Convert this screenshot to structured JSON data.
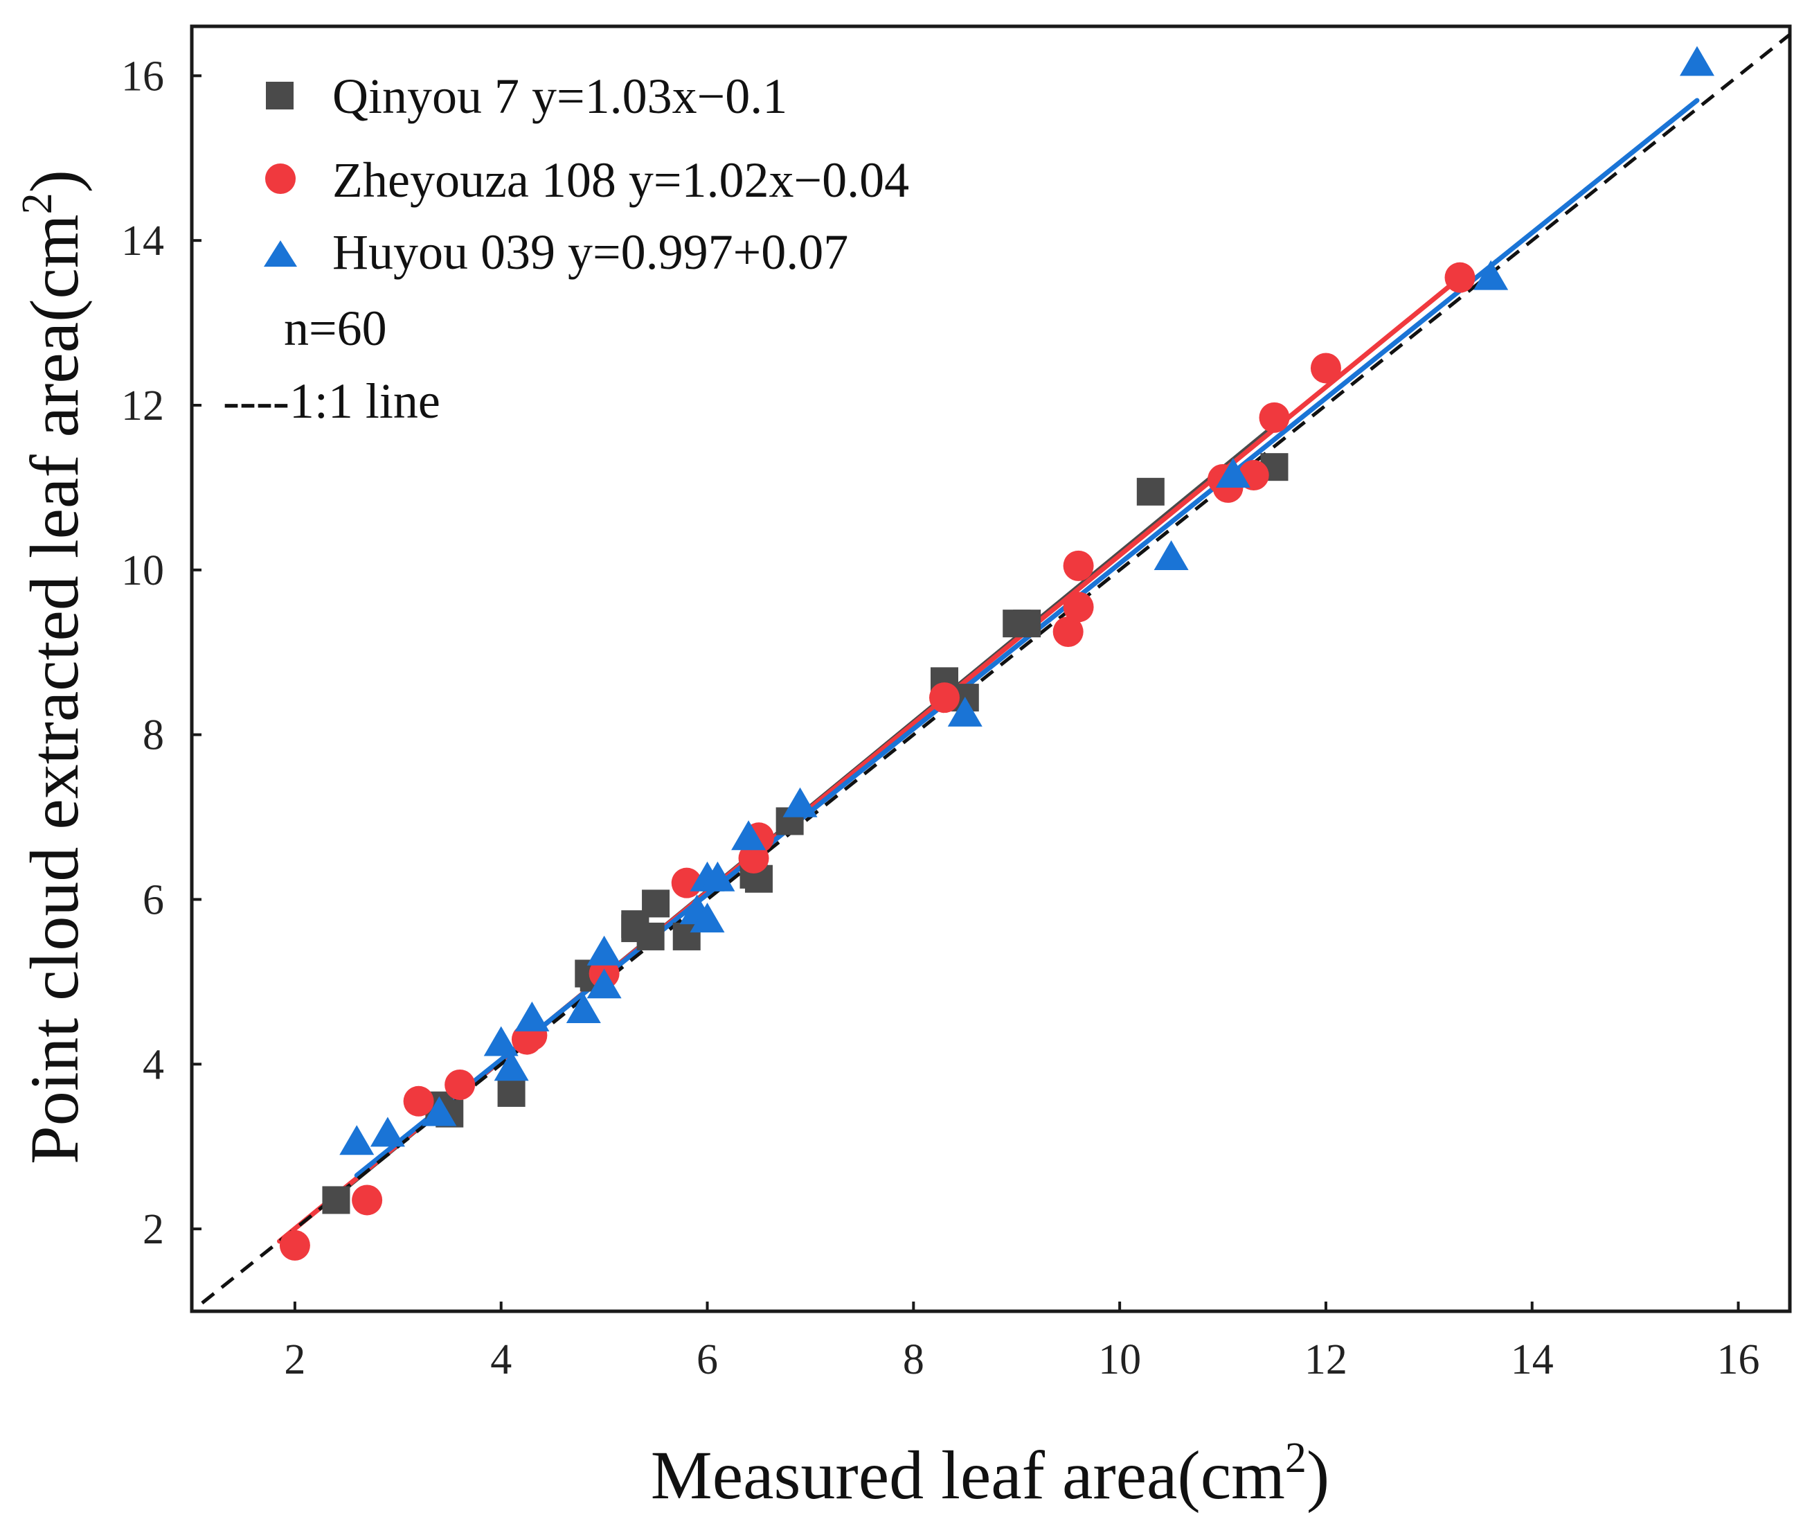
{
  "chart_data": {
    "type": "scatter",
    "xlabel": "Measured leaf area(cm",
    "xlabel_sup": "2",
    "xlabel_close": ")",
    "ylabel": "Point cloud extracted leaf area(cm",
    "ylabel_sup": "2",
    "ylabel_close": ")",
    "xlim": [
      1,
      16.5
    ],
    "ylim": [
      1,
      16.6
    ],
    "xticks": [
      2,
      4,
      6,
      8,
      10,
      12,
      14,
      16
    ],
    "yticks": [
      2,
      4,
      6,
      8,
      10,
      12,
      14,
      16
    ],
    "grid": false,
    "legend_position": "top-left",
    "n_label": "n=60",
    "reference_line": {
      "label": "----1:1 line",
      "slope": 1,
      "intercept": 0,
      "range": [
        1.1,
        16.5
      ],
      "color": "#111111"
    },
    "series": [
      {
        "name": "Qinyou 7",
        "equation": "Qinyou 7 y=1.03x−0.1",
        "marker": "square",
        "color": "#4a4a4a",
        "fit": {
          "x0": 2.4,
          "y0": 2.4,
          "x1": 11.5,
          "y1": 11.75
        },
        "points": [
          [
            2.4,
            2.35
          ],
          [
            3.4,
            3.5
          ],
          [
            4.1,
            3.65
          ],
          [
            4.85,
            5.1
          ],
          [
            5.3,
            5.7
          ],
          [
            5.45,
            5.55
          ],
          [
            5.5,
            5.95
          ],
          [
            5.8,
            5.55
          ],
          [
            6.5,
            6.25
          ],
          [
            6.8,
            6.95
          ],
          [
            8.3,
            8.65
          ],
          [
            8.5,
            8.45
          ],
          [
            9.0,
            9.35
          ],
          [
            9.1,
            9.35
          ],
          [
            10.3,
            10.95
          ],
          [
            11.5,
            11.25
          ],
          [
            5.3,
            5.65
          ],
          [
            6.45,
            6.3
          ],
          [
            3.5,
            3.4
          ],
          [
            4.9,
            5.05
          ]
        ]
      },
      {
        "name": "Zheyouza 108",
        "equation": "Zheyouza 108 y=1.02x−0.04",
        "marker": "circle",
        "color": "#f0393e",
        "fit": {
          "x0": 1.85,
          "y0": 1.85,
          "x1": 13.35,
          "y1": 13.6
        },
        "points": [
          [
            2.0,
            1.8
          ],
          [
            2.7,
            2.35
          ],
          [
            3.2,
            3.55
          ],
          [
            3.6,
            3.75
          ],
          [
            4.3,
            4.35
          ],
          [
            5.0,
            5.1
          ],
          [
            5.8,
            6.2
          ],
          [
            6.45,
            6.5
          ],
          [
            6.5,
            6.75
          ],
          [
            8.3,
            8.45
          ],
          [
            9.5,
            9.25
          ],
          [
            9.6,
            9.55
          ],
          [
            9.6,
            10.05
          ],
          [
            11.0,
            11.1
          ],
          [
            11.3,
            11.15
          ],
          [
            11.5,
            11.85
          ],
          [
            12.0,
            12.45
          ],
          [
            13.3,
            13.55
          ],
          [
            4.25,
            4.3
          ],
          [
            11.05,
            11.0
          ]
        ]
      },
      {
        "name": "Huyou 039",
        "equation": "Huyou 039 y=0.997+0.07",
        "marker": "triangle",
        "color": "#1a74d6",
        "fit": {
          "x0": 2.6,
          "y0": 2.65,
          "x1": 15.6,
          "y1": 15.7
        },
        "points": [
          [
            2.6,
            3.05
          ],
          [
            2.9,
            3.15
          ],
          [
            3.4,
            3.4
          ],
          [
            4.0,
            4.25
          ],
          [
            4.1,
            3.95
          ],
          [
            4.3,
            4.55
          ],
          [
            4.8,
            4.65
          ],
          [
            5.0,
            4.95
          ],
          [
            5.0,
            5.35
          ],
          [
            5.9,
            5.85
          ],
          [
            6.0,
            5.75
          ],
          [
            6.0,
            6.25
          ],
          [
            6.1,
            6.25
          ],
          [
            6.4,
            6.75
          ],
          [
            6.9,
            7.15
          ],
          [
            8.5,
            8.25
          ],
          [
            10.5,
            10.15
          ],
          [
            11.1,
            11.15
          ],
          [
            13.6,
            13.55
          ],
          [
            15.6,
            16.15
          ]
        ]
      }
    ]
  }
}
